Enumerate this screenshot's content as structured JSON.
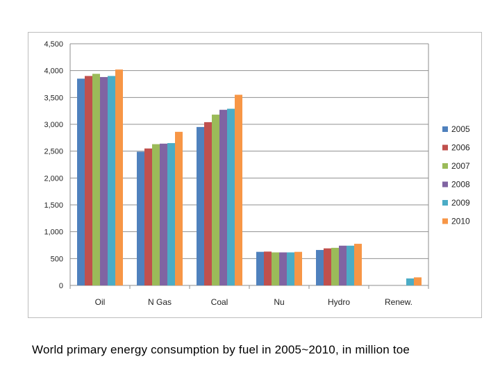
{
  "caption": "World primary energy consumption by fuel in 2005~2010, in million toe",
  "chart_data": {
    "type": "bar",
    "categories": [
      "Oil",
      "N Gas",
      "Coal",
      "Nu",
      "Hydro",
      "Renew."
    ],
    "series": [
      {
        "name": "2005",
        "color": "#4f81bd",
        "values": [
          3850,
          2490,
          2950,
          625,
          660,
          0
        ]
      },
      {
        "name": "2006",
        "color": "#c0504d",
        "values": [
          3900,
          2550,
          3040,
          630,
          690,
          0
        ]
      },
      {
        "name": "2007",
        "color": "#9bbb59",
        "values": [
          3940,
          2630,
          3180,
          615,
          700,
          0
        ]
      },
      {
        "name": "2008",
        "color": "#8064a2",
        "values": [
          3880,
          2640,
          3270,
          615,
          740,
          0
        ]
      },
      {
        "name": "2009",
        "color": "#4bacc6",
        "values": [
          3900,
          2650,
          3290,
          615,
          740,
          130
        ]
      },
      {
        "name": "2010",
        "color": "#f79646",
        "values": [
          4020,
          2860,
          3550,
          625,
          775,
          150
        ]
      }
    ],
    "ylim": [
      0,
      4500
    ],
    "yticks": [
      0,
      500,
      1000,
      1500,
      2000,
      2500,
      3000,
      3500,
      4000,
      4500
    ],
    "ytick_labels": [
      "0",
      "500",
      "1,000",
      "1,500",
      "2,000",
      "2,500",
      "3,000",
      "3,500",
      "4,000",
      "4,500"
    ],
    "grid": true,
    "legend_position": "right",
    "title": "",
    "xlabel": "",
    "ylabel": ""
  }
}
